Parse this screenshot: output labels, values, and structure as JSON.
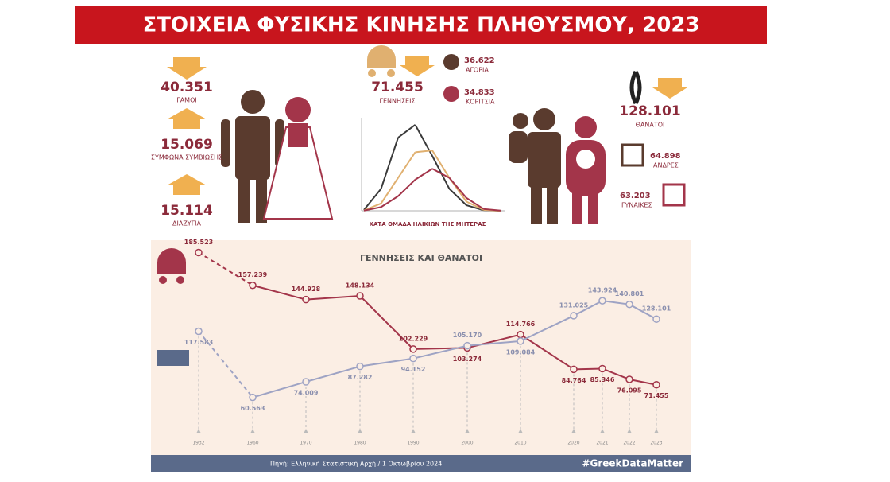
{
  "header": {
    "title": "ΣΤΟΙΧΕΙΑ ΦΥΣΙΚΗΣ ΚΙΝΗΣΗΣ ΠΛΗΘΥΣΜΟΥ, 2023"
  },
  "stats": [
    {
      "value": "40.351",
      "label": "ΓΑΜΟΙ"
    },
    {
      "value": "15.069",
      "label": "ΣΥΜΦΩΝΑ ΣΥΜΒΙΩΣΗΣ"
    },
    {
      "value": "15.114",
      "label": "ΔΙΑΖΥΓΙΑ"
    },
    {
      "value": "71.455",
      "label": "ΓΕΝΝΗΣΕΙΣ"
    },
    {
      "value": "36.622",
      "label": "ΑΓΟΡΙΑ"
    },
    {
      "value": "34.833",
      "label": "ΚΟΡΙΤΣΙΑ"
    },
    {
      "value": "128.101",
      "label": "ΘΑΝΑΤΟΙ"
    },
    {
      "value": "64.898",
      "label": "ΑΝΔΡΕΣ"
    },
    {
      "value": "63.203",
      "label": "ΓΥΝΑΙΚΕΣ"
    }
  ],
  "chart_data": [
    {
      "type": "line",
      "title": "ΓΕΝΝΗΣΕΙΣ ΚΑΙ ΘΑΝΑΤΟΙ",
      "categories": [
        "1932",
        "1960",
        "1970",
        "1980",
        "1990",
        "2000",
        "2010",
        "2020",
        "2021",
        "2022",
        "2023"
      ],
      "series": [
        {
          "color": "#a3354a",
          "values": [
            185523,
            157239,
            144928,
            148134,
            102229,
            103274,
            114766,
            84764,
            85346,
            76095,
            71455
          ],
          "value_labels": [
            "185.523",
            "157.239",
            "144.928",
            "148.134",
            "102.229",
            "103.274",
            "114.766",
            "84.764",
            "85.346",
            "76.095",
            "71.455"
          ]
        },
        {
          "color": "#9ea3c4",
          "values": [
            117583,
            60563,
            74009,
            87282,
            94152,
            105170,
            109084,
            131025,
            143924,
            140801,
            128101
          ],
          "value_labels": [
            "117.583",
            "60.563",
            "74.009",
            "87.282",
            "94.152",
            "105.170",
            "109.084",
            "131.025",
            "143.924",
            "140.801",
            "128.101"
          ]
        }
      ],
      "ylim": [
        50000,
        190000
      ]
    },
    {
      "type": "line",
      "xlabel": "ΚΑΤΑ ΟΜΑΔΑ ΗΛΙΚΙΩΝ ΤΗΣ ΜΗΤΕΡΑΣ",
      "categories": [
        null,
        null,
        null,
        null,
        null,
        null,
        null,
        null,
        null
      ],
      "series": [
        {
          "color": "#3a3a3a",
          "values": [
            500,
            12000,
            40000,
            47000,
            30000,
            12000,
            3000,
            300,
            0
          ]
        },
        {
          "color": "#e0b070",
          "values": [
            200,
            4000,
            18000,
            32000,
            33000,
            18000,
            5000,
            500,
            0
          ]
        },
        {
          "color": "#a3354a",
          "values": [
            100,
            2000,
            8000,
            17000,
            23000,
            18000,
            7000,
            1000,
            100
          ]
        }
      ],
      "ylim": [
        0,
        50000
      ]
    }
  ],
  "footer": {
    "source": "Πηγή: Ελληνική Στατιστική Αρχή / 1 Οκτωβρίου 2024",
    "tag": "#GreekDataMatter"
  }
}
